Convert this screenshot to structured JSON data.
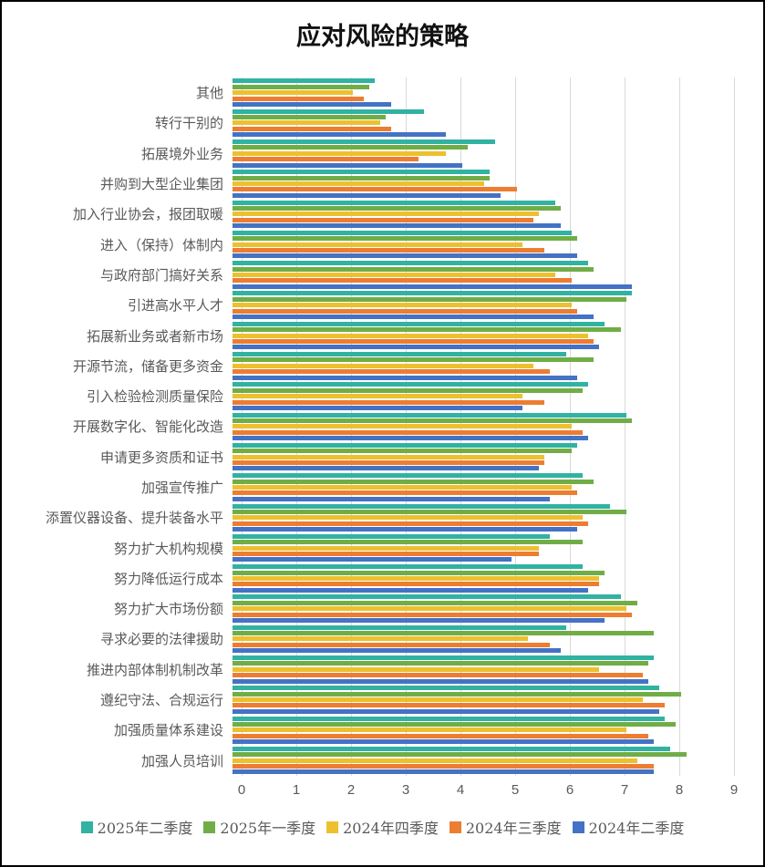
{
  "title": "应对风险的策略",
  "chart_data": {
    "type": "bar",
    "orientation": "horizontal",
    "title": "应对风险的策略",
    "xlabel": "",
    "ylabel": "",
    "xlim": [
      0,
      9
    ],
    "x_ticks": [
      "0",
      "1",
      "2",
      "3",
      "4",
      "5",
      "6",
      "7",
      "8",
      "9"
    ],
    "grid": true,
    "legend_position": "bottom",
    "categories_top_to_bottom": [
      "其他",
      "转行干别的",
      "拓展境外业务",
      "并购到大型企业集团",
      "加入行业协会，报团取暖",
      "进入（保持）体制内",
      "与政府部门搞好关系",
      "引进高水平人才",
      "拓展新业务或者新市场",
      "开源节流，储备更多资金",
      "引入检验检测质量保险",
      "开展数字化、智能化改造",
      "申请更多资质和证书",
      "加强宣传推广",
      "添置仪器设备、提升装备水平",
      "努力扩大机构规模",
      "努力降低运行成本",
      "努力扩大市场份额",
      "寻求必要的法律援助",
      "推进内部体制机制改革",
      "遵纪守法、合规运行",
      "加强质量体系建设",
      "加强人员培训"
    ],
    "series": [
      {
        "name": "2025年二季度",
        "color": "#31B2A2",
        "values": [
          2.6,
          3.5,
          4.8,
          4.7,
          5.9,
          6.2,
          6.5,
          7.3,
          6.8,
          6.1,
          6.5,
          7.2,
          6.3,
          6.4,
          6.9,
          5.8,
          6.4,
          7.1,
          6.1,
          7.7,
          7.8,
          7.9,
          8.0
        ]
      },
      {
        "name": "2025年一季度",
        "color": "#70AD47",
        "values": [
          2.5,
          2.8,
          4.3,
          4.7,
          6.0,
          6.3,
          6.6,
          7.2,
          7.1,
          6.6,
          6.4,
          7.3,
          6.2,
          6.6,
          7.2,
          6.4,
          6.8,
          7.4,
          7.7,
          7.6,
          8.2,
          8.1,
          8.3
        ]
      },
      {
        "name": "2024年四季度",
        "color": "#EDC02F",
        "values": [
          2.2,
          2.7,
          3.9,
          4.6,
          5.6,
          5.3,
          5.9,
          6.2,
          6.5,
          5.5,
          5.3,
          6.2,
          5.7,
          6.2,
          6.4,
          5.6,
          6.7,
          7.2,
          5.4,
          6.7,
          7.5,
          7.2,
          7.4
        ]
      },
      {
        "name": "2024年三季度",
        "color": "#ED7D31",
        "values": [
          2.4,
          2.9,
          3.4,
          5.2,
          5.5,
          5.7,
          6.2,
          6.3,
          6.6,
          5.8,
          5.7,
          6.4,
          5.7,
          6.3,
          6.5,
          5.6,
          6.7,
          7.3,
          5.8,
          7.5,
          7.9,
          7.6,
          7.7
        ]
      },
      {
        "name": "2024年二季度",
        "color": "#4472C4",
        "values": [
          2.9,
          3.9,
          4.2,
          4.9,
          6.0,
          6.3,
          7.3,
          6.6,
          6.7,
          6.3,
          5.3,
          6.5,
          5.6,
          5.8,
          6.3,
          5.1,
          6.5,
          6.8,
          6.0,
          7.6,
          7.8,
          7.7,
          7.7
        ]
      }
    ],
    "colors": {
      "gridline": "#d9d9d9",
      "axis_text": "#595959",
      "category_text": "#595959",
      "title_text": "#111111"
    }
  }
}
